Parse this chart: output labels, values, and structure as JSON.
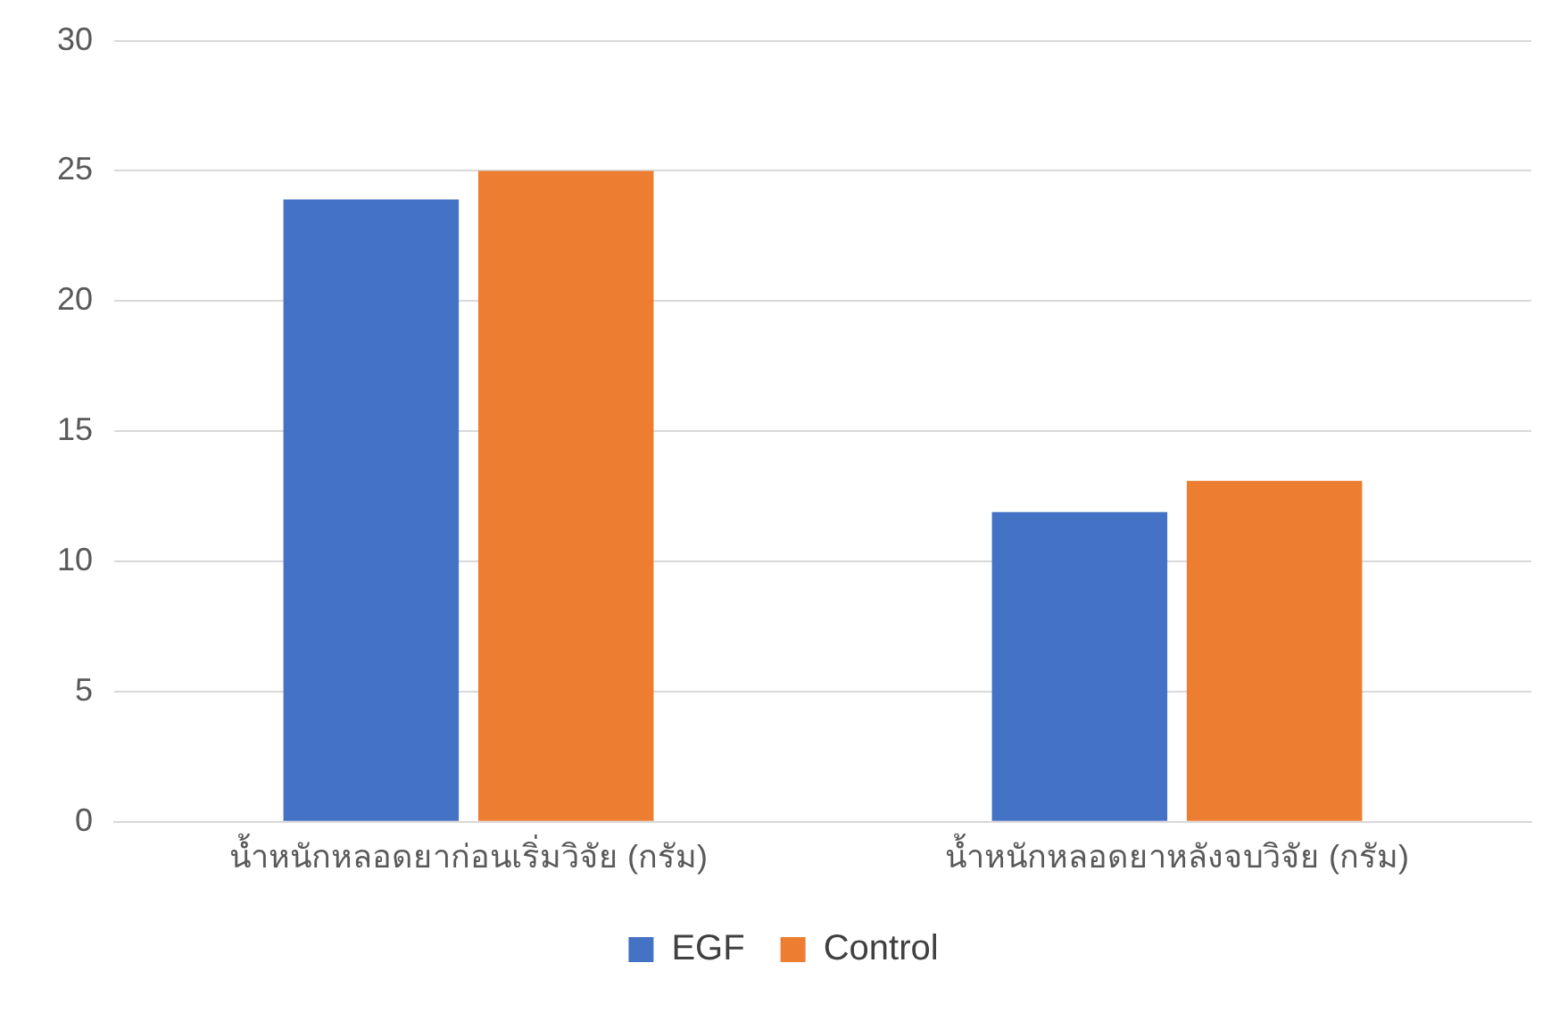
{
  "chart_data": {
    "type": "bar",
    "categories": [
      "น้ำหนักหลอดยาก่อนเริ่มวิจัย (กรัม)",
      "น้ำหนักหลอดยาหลังจบวิจัย (กรัม)"
    ],
    "series": [
      {
        "name": "EGF",
        "color": "#4472c4",
        "values": [
          23.9,
          11.9
        ]
      },
      {
        "name": "Control",
        "color": "#ed7d31",
        "values": [
          25.0,
          13.1
        ]
      }
    ],
    "ylim": [
      0,
      30
    ],
    "yticks": [
      0,
      5,
      10,
      15,
      20,
      25,
      30
    ],
    "grid": "y",
    "legend": "bottom"
  }
}
